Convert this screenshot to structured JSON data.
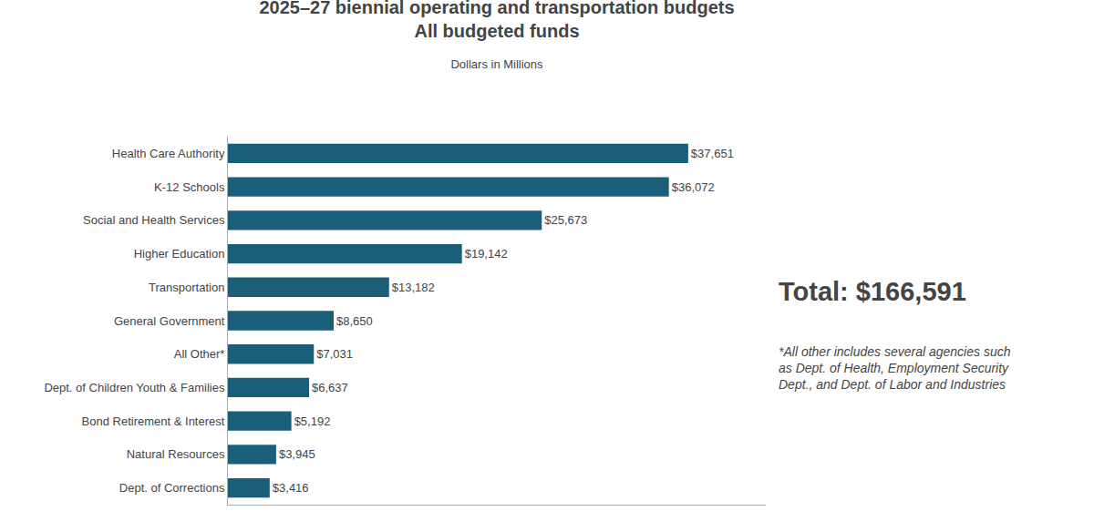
{
  "chart_data": {
    "type": "bar",
    "orientation": "horizontal",
    "title": [
      "2025–27 biennial operating and transportation budgets",
      "All budgeted funds"
    ],
    "subtitle": "Dollars in Millions",
    "categories": [
      "Health Care Authority",
      "K-12 Schools",
      "Social and Health Services",
      "Higher Education",
      "Transportation",
      "General Government",
      "All Other*",
      "Dept. of Children Youth & Families",
      "Bond Retirement & Interest",
      "Natural Resources",
      "Dept. of Corrections"
    ],
    "values": [
      37651,
      36072,
      25673,
      19142,
      13182,
      8650,
      7031,
      6637,
      5192,
      3945,
      3416
    ],
    "value_labels": [
      "$37,651",
      "$36,072",
      "$25,673",
      "$19,142",
      "$13,182",
      "$8,650",
      "$7,031",
      "$6,637",
      "$5,192",
      "$3,945",
      "$3,416"
    ],
    "data_labels": true,
    "color": "#1a5e7a",
    "xlim": [
      0,
      44000
    ],
    "tick_labels": "y",
    "grid": false,
    "annotations": [
      "Total: $166,591",
      "*All other includes several agencies such",
      "as Dept. of Health, Employment Security",
      "Dept., and Dept. of Labor and Industries"
    ]
  }
}
